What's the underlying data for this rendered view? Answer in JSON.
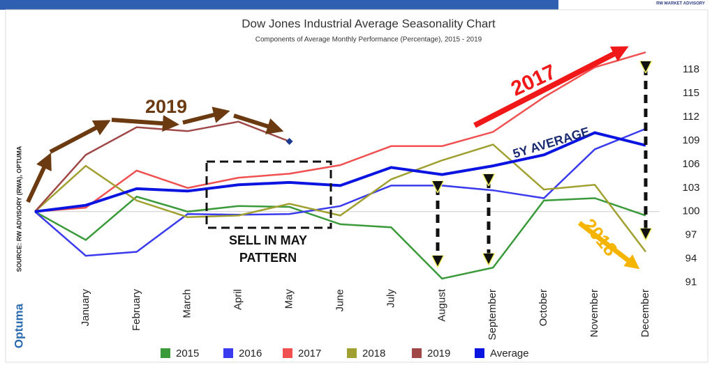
{
  "chart_data": {
    "type": "line",
    "title": "Dow Jones Industrial Average Seasonality Chart",
    "subtitle": "Components of Average Monthly Performance (Percentage), 2015 - 2019",
    "categories": [
      null,
      "January",
      "February",
      "March",
      "April",
      "May",
      "June",
      "July",
      "August",
      "September",
      "October",
      "November",
      "December"
    ],
    "series": [
      {
        "name": "2015",
        "color": "#3a9a3a",
        "values": [
          100,
          96.4,
          101.9,
          100,
          100.7,
          100.6,
          98.4,
          98,
          91.5,
          92.9,
          101.4,
          101.7,
          99.5
        ]
      },
      {
        "name": "2016",
        "color": "#3a3aee",
        "values": [
          100,
          94.4,
          94.9,
          99.7,
          99.6,
          99.7,
          100.7,
          103.3,
          103.3,
          102.7,
          101.7,
          107.9,
          110.5
        ]
      },
      {
        "name": "2017",
        "color": "#f05050",
        "values": [
          100,
          100.5,
          105.2,
          103,
          104.3,
          104.8,
          105.9,
          108.3,
          108.3,
          110.1,
          114.5,
          118.3,
          120.2
        ]
      },
      {
        "name": "2018",
        "color": "#a0a030",
        "values": [
          100,
          105.8,
          101.4,
          99.3,
          99.5,
          101,
          99.5,
          104.1,
          106.5,
          108.5,
          102.8,
          103.4,
          94.9
        ]
      },
      {
        "name": "2019",
        "color": "#a04848",
        "values": [
          100,
          107.2,
          110.7,
          110.2,
          111.4,
          108.9,
          null,
          null,
          null,
          null,
          null,
          null,
          null
        ]
      },
      {
        "name": "Average",
        "color": "#0a14e0",
        "values": [
          100,
          100.8,
          102.9,
          102.6,
          103.4,
          103.7,
          103.3,
          105.6,
          104.7,
          105.8,
          107.2,
          110,
          108.4
        ]
      }
    ],
    "ylim": [
      90,
      121
    ],
    "yticks": [
      91,
      94,
      97,
      100,
      103,
      106,
      109,
      112,
      115,
      118
    ],
    "annotations": [
      "2019",
      "2017",
      "5Y AVERAGE",
      "2018",
      "SELL IN MAY",
      "PATTERN"
    ],
    "source": "SOURCE: RW ADVISORY (RWA), OPTUMA",
    "brand": "Optuma",
    "logo_text": "RW MARKET ADVISORY"
  }
}
